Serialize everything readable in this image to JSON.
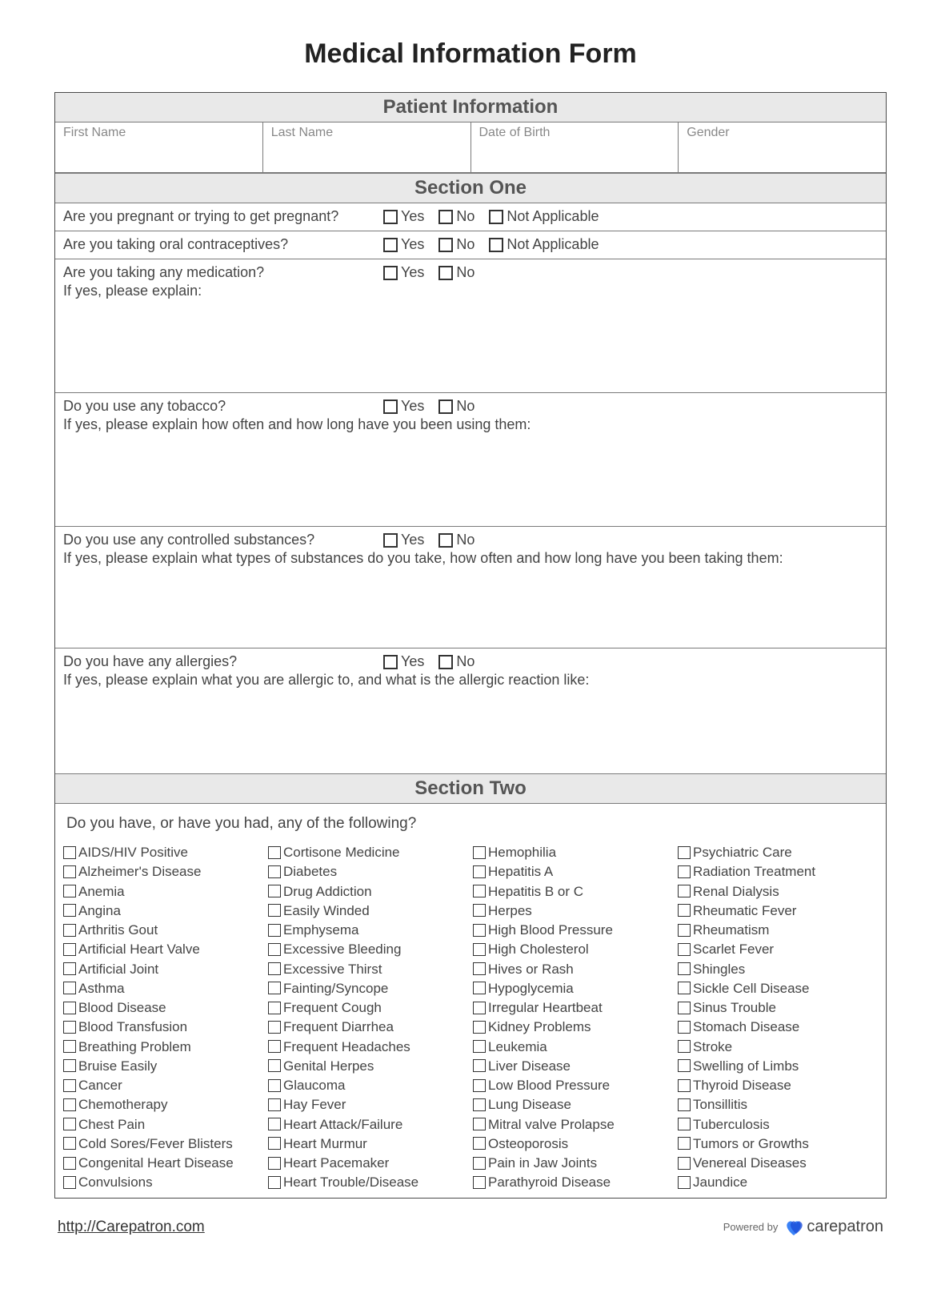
{
  "colors": {
    "border": "#4a4a4a",
    "header_bg": "#e9e9e9",
    "header_text": "#555",
    "label": "#888",
    "text": "#444",
    "cb_border": "#333",
    "link": "#333"
  },
  "typography": {
    "title_size": 34,
    "section_header_size": 24,
    "body_size": 18,
    "condition_size": 17,
    "label_size": 16
  },
  "title": "Medical Information Form",
  "patient_info": {
    "header": "Patient Information",
    "fields": [
      "First Name",
      "Last Name",
      "Date of Birth",
      "Gender"
    ]
  },
  "section_one": {
    "header": "Section One",
    "questions": [
      {
        "q": "Are you pregnant or trying to get pregnant?",
        "options": [
          "Yes",
          "No",
          "Not Applicable"
        ]
      },
      {
        "q": "Are you taking oral contraceptives?",
        "options": [
          "Yes",
          "No",
          "Not Applicable"
        ]
      },
      {
        "q": "Are you taking any medication?",
        "options": [
          "Yes",
          "No"
        ],
        "sub": "If yes, please explain:"
      },
      {
        "q": "Do you use any tobacco?",
        "options": [
          "Yes",
          "No"
        ],
        "sub": "If yes, please explain how often and how long have you been using them:"
      },
      {
        "q": "Do you use any controlled substances?",
        "options": [
          "Yes",
          "No"
        ],
        "sub": "If yes, please explain what types of substances do you take, how often and how long have you been taking them:"
      },
      {
        "q": "Do you have any allergies?",
        "options": [
          "Yes",
          "No"
        ],
        "sub": "If yes, please explain what you are allergic to, and what is the allergic reaction like:"
      }
    ]
  },
  "section_two": {
    "header": "Section Two",
    "question": "Do you have, or have you had, any of the following?",
    "cols": [
      [
        "AIDS/HIV Positive",
        "Alzheimer's Disease",
        "Anemia",
        "Angina",
        "Arthritis Gout",
        "Artificial Heart Valve",
        "Artificial Joint",
        "Asthma",
        "Blood Disease",
        "Blood Transfusion",
        "Breathing Problem",
        "Bruise Easily",
        "Cancer",
        "Chemotherapy",
        "Chest Pain",
        "Cold Sores/Fever Blisters",
        "Congenital Heart Disease",
        "Convulsions"
      ],
      [
        "Cortisone Medicine",
        "Diabetes",
        "Drug Addiction",
        "Easily Winded",
        "Emphysema",
        "Excessive Bleeding",
        "Excessive Thirst",
        "Fainting/Syncope",
        "Frequent Cough",
        "Frequent Diarrhea",
        "Frequent Headaches",
        "Genital Herpes",
        "Glaucoma",
        "Hay Fever",
        "Heart Attack/Failure",
        "Heart Murmur",
        "Heart Pacemaker",
        "Heart Trouble/Disease"
      ],
      [
        "Hemophilia",
        "Hepatitis A",
        "Hepatitis B or C",
        "Herpes",
        "High Blood Pressure",
        "High Cholesterol",
        "Hives or Rash",
        "Hypoglycemia",
        "Irregular Heartbeat",
        "Kidney Problems",
        "Leukemia",
        "Liver Disease",
        "Low Blood Pressure",
        "Lung Disease",
        "Mitral valve Prolapse",
        "Osteoporosis",
        "Pain in Jaw Joints",
        "Parathyroid Disease"
      ],
      [
        "Psychiatric Care",
        "Radiation Treatment",
        "Renal Dialysis",
        "Rheumatic Fever",
        "Rheumatism",
        "Scarlet Fever",
        "Shingles",
        "Sickle Cell Disease",
        "Sinus Trouble",
        "Stomach Disease",
        "Stroke",
        "Swelling of Limbs",
        "Thyroid Disease",
        "Tonsillitis",
        "Tuberculosis",
        "Tumors or Growths",
        "Venereal Diseases",
        "Jaundice"
      ]
    ]
  },
  "footer": {
    "url": "http://Carepatron.com",
    "powered_by": "Powered by",
    "brand": "carepatron"
  }
}
